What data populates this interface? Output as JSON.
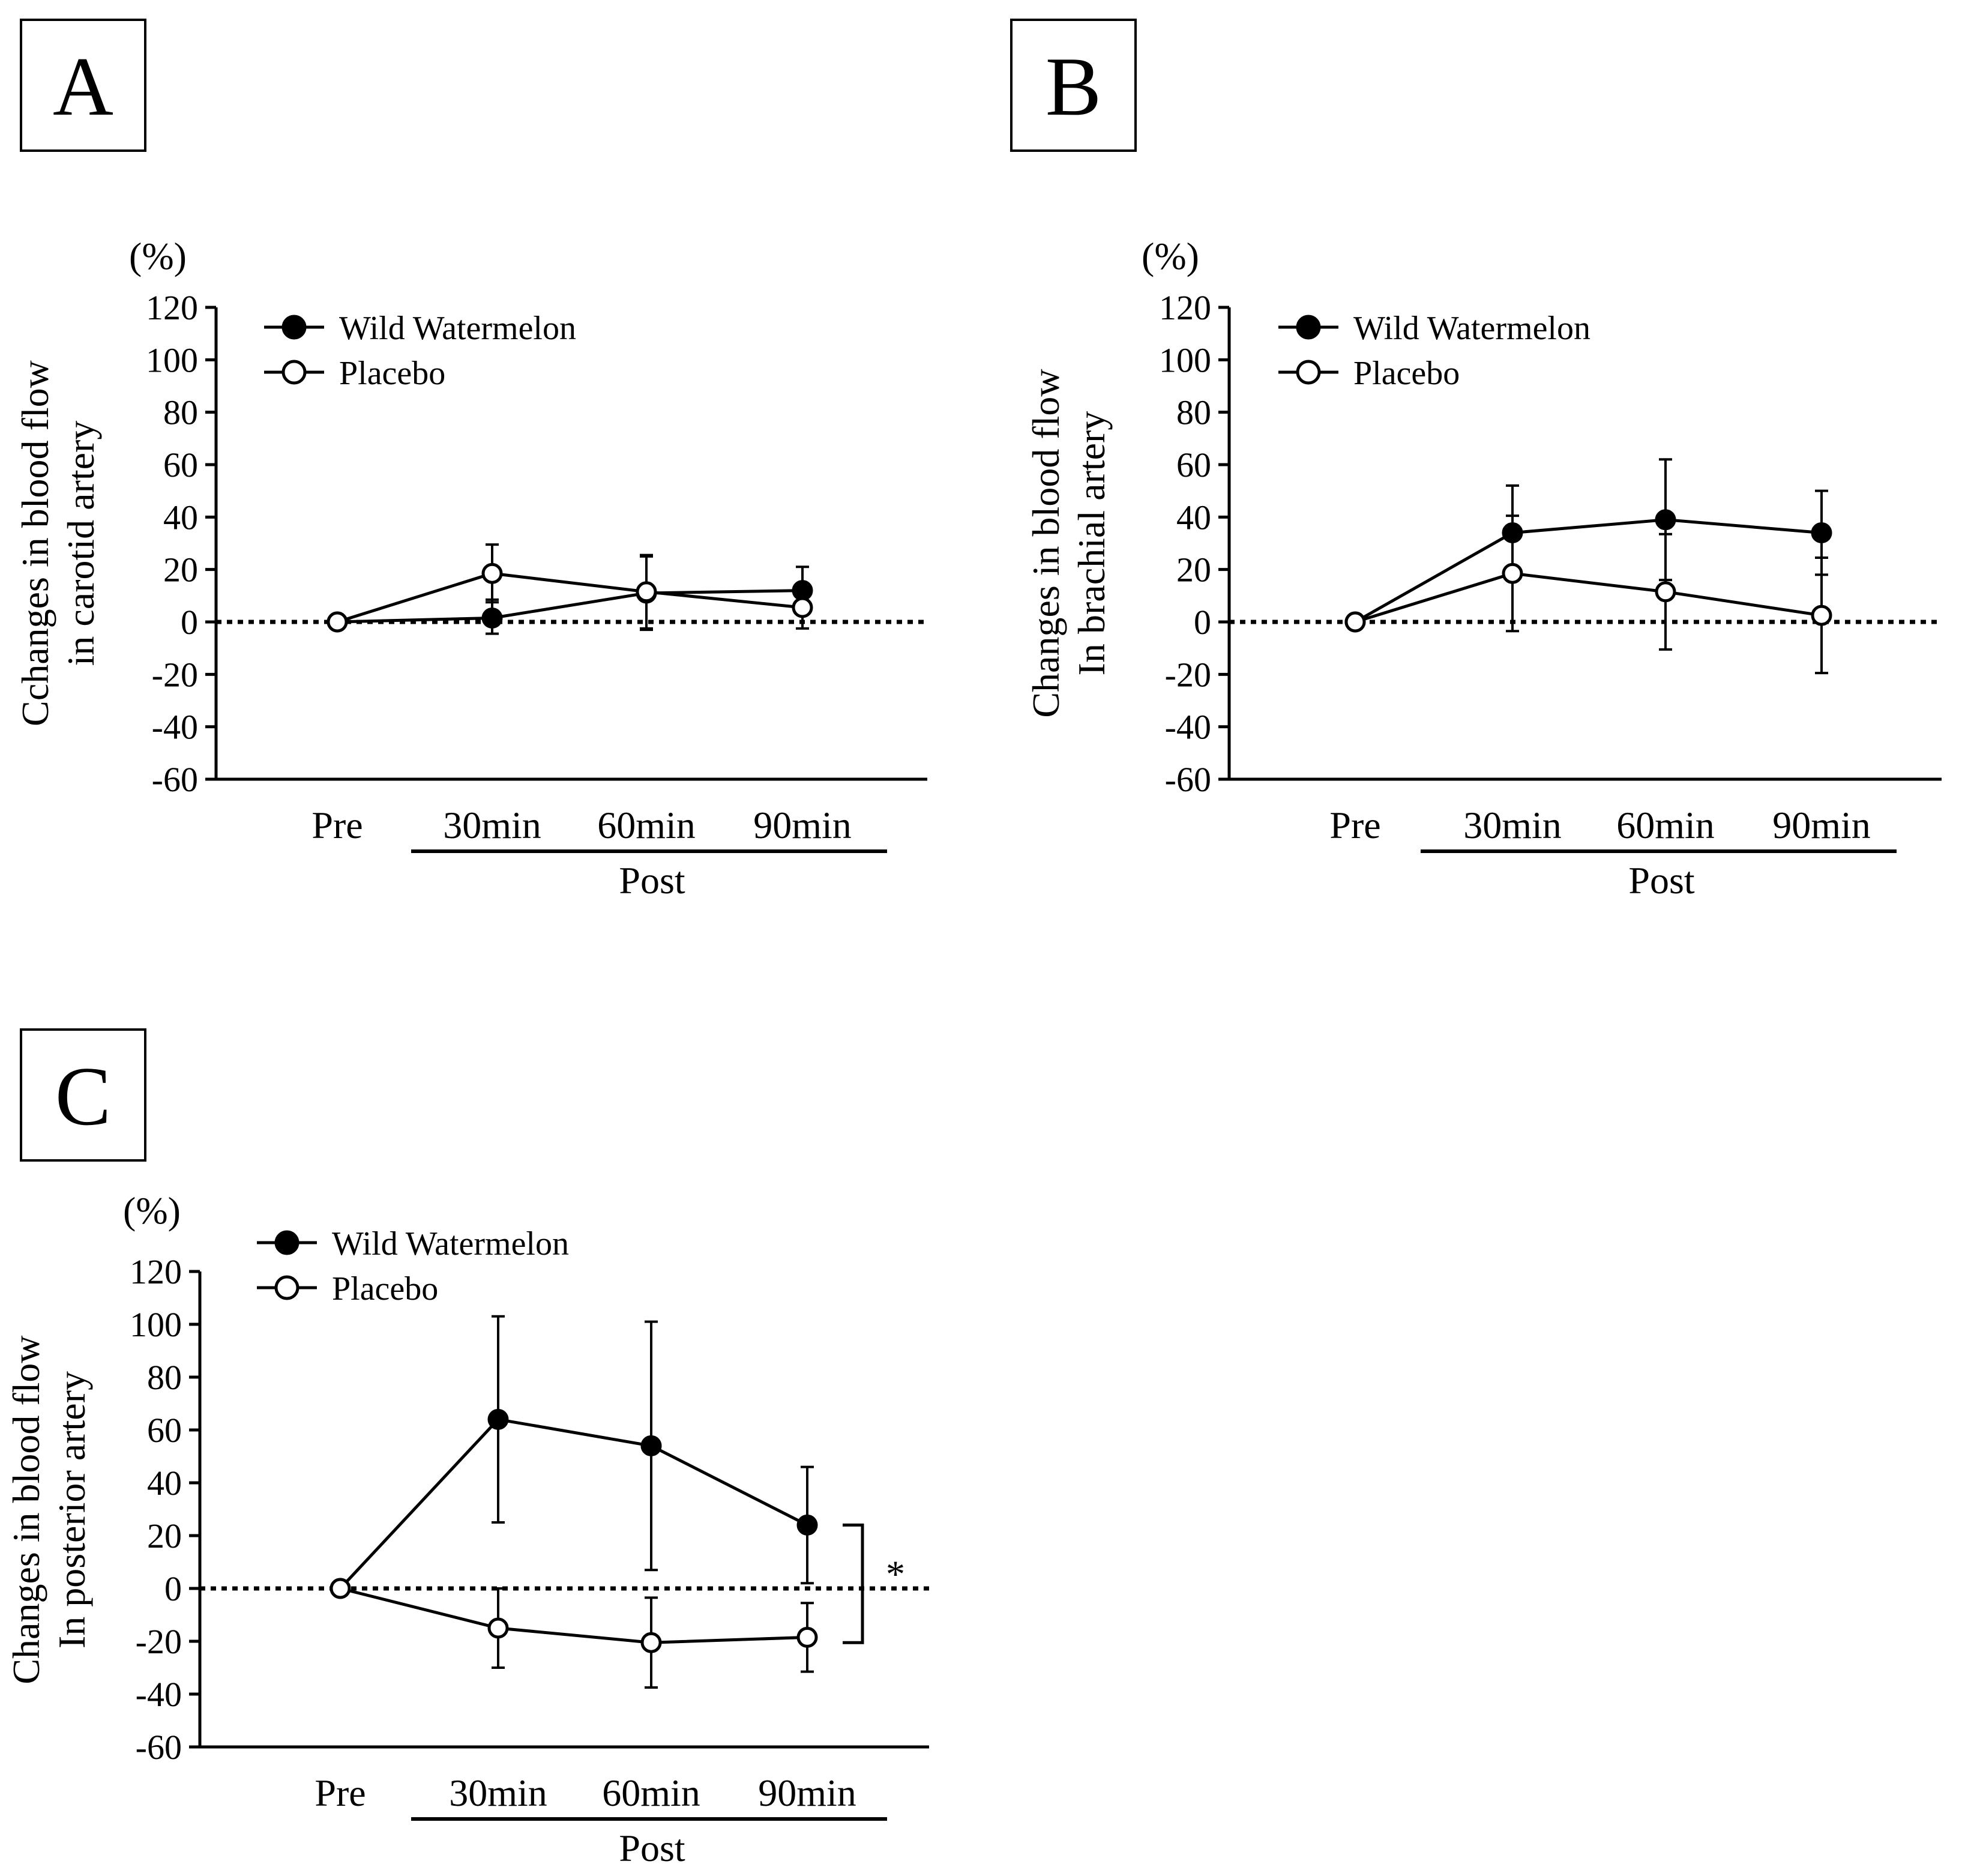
{
  "chart_data": [
    {
      "type": "line",
      "panel_label": "A",
      "unit_label": "(%)",
      "ylabel_line1": "Cchanges in blood flow",
      "ylabel_line2": "in carotid artery",
      "ylim": [
        -60,
        120
      ],
      "yticks": [
        "120",
        "100",
        "80",
        "60",
        "40",
        "20",
        "0",
        "-20",
        "-40",
        "-60"
      ],
      "categories": [
        "Pre",
        "30min",
        "60min",
        "90min"
      ],
      "group_label": "Post",
      "series": [
        {
          "name": "Wild Watermelon",
          "marker": "filled",
          "values": [
            0,
            1.5,
            11,
            12
          ],
          "err_upper": [
            0,
            7,
            14,
            9
          ],
          "err_lower": [
            0,
            6,
            14,
            9
          ]
        },
        {
          "name": "Placebo",
          "marker": "open",
          "values": [
            0,
            18.5,
            11.5,
            5.5
          ],
          "err_upper": [
            0,
            11,
            14,
            9
          ],
          "err_lower": [
            0,
            11,
            14,
            8
          ]
        }
      ],
      "significance": null
    },
    {
      "type": "line",
      "panel_label": "B",
      "unit_label": "(%)",
      "ylabel_line1": "Changes in blood flow",
      "ylabel_line2": "In brachial artery",
      "ylim": [
        -60,
        120
      ],
      "yticks": [
        "120",
        "100",
        "80",
        "60",
        "40",
        "20",
        "0",
        "-20",
        "-40",
        "-60"
      ],
      "categories": [
        "Pre",
        "30min",
        "60min",
        "90min"
      ],
      "group_label": "Post",
      "series": [
        {
          "name": "Wild Watermelon",
          "marker": "filled",
          "values": [
            0,
            34,
            39,
            34
          ],
          "err_upper": [
            0,
            18,
            23,
            16
          ],
          "err_lower": [
            0,
            18,
            23,
            16
          ]
        },
        {
          "name": "Placebo",
          "marker": "open",
          "values": [
            0,
            18.5,
            11.5,
            2.5
          ],
          "err_upper": [
            0,
            22,
            22,
            22
          ],
          "err_lower": [
            0,
            22,
            22,
            22
          ]
        }
      ],
      "significance": null
    },
    {
      "type": "line",
      "panel_label": "C",
      "unit_label": "(%)",
      "ylabel_line1": "Changes in blood flow",
      "ylabel_line2": "In posterior artery",
      "ylim": [
        -60,
        120
      ],
      "yticks": [
        "120",
        "100",
        "80",
        "60",
        "40",
        "20",
        "0",
        "-20",
        "-40",
        "-60"
      ],
      "categories": [
        "Pre",
        "30min",
        "60min",
        "90min"
      ],
      "group_label": "Post",
      "series": [
        {
          "name": "Wild Watermelon",
          "marker": "filled",
          "values": [
            0,
            64,
            54,
            24
          ],
          "err_upper": [
            0,
            39,
            47,
            22
          ],
          "err_lower": [
            0,
            39,
            47,
            22
          ]
        },
        {
          "name": "Placebo",
          "marker": "open",
          "values": [
            0,
            -15,
            -20.5,
            -18.5
          ],
          "err_upper": [
            0,
            15,
            17,
            13
          ],
          "err_lower": [
            0,
            15,
            17,
            13
          ]
        }
      ],
      "significance": {
        "text": "*",
        "from_value": 24,
        "to_value": -20.5
      }
    }
  ]
}
